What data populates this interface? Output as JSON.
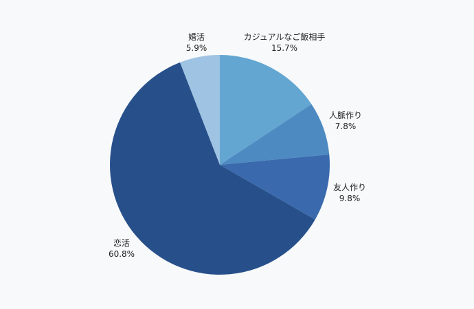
{
  "chart_data": {
    "type": "pie",
    "start_angle_deg": 0,
    "direction": "clockwise",
    "legend": "none",
    "slices": [
      {
        "label": "カジュアルなご飯相手",
        "value": 15.7,
        "value_text": "15.7%",
        "color": "#63a6d1"
      },
      {
        "label": "人脈作り",
        "value": 7.8,
        "value_text": "7.8%",
        "color": "#4e8ac2"
      },
      {
        "label": "友人作り",
        "value": 9.8,
        "value_text": "9.8%",
        "color": "#3a6aad"
      },
      {
        "label": "恋活",
        "value": 60.8,
        "value_text": "60.8%",
        "color": "#27508b"
      },
      {
        "label": "婚活",
        "value": 5.9,
        "value_text": "5.9%",
        "color": "#9ec3e3"
      }
    ]
  }
}
